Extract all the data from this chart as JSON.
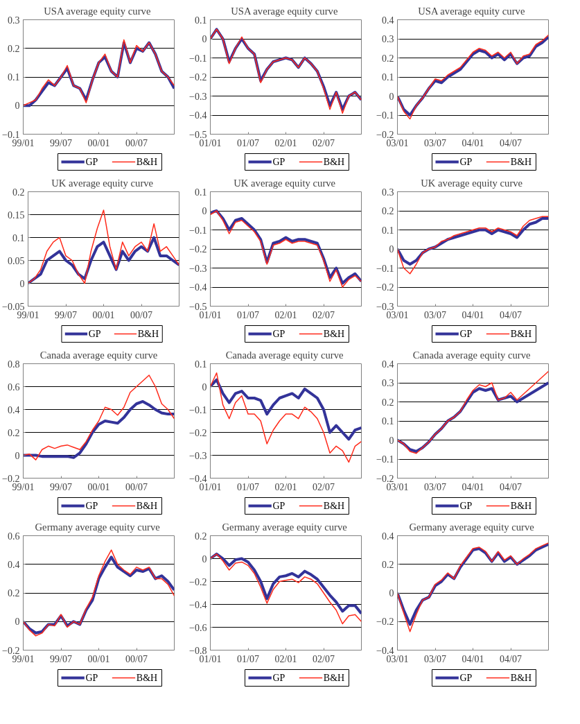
{
  "chart_data": [
    {
      "type": "line",
      "title": "USA  average equity curve",
      "categories": [
        "99/01",
        null,
        null,
        null,
        null,
        null,
        "99/07",
        null,
        null,
        null,
        null,
        null,
        "00/01",
        null,
        null,
        null,
        null,
        null,
        "00/07",
        null,
        null,
        null,
        null,
        null,
        null
      ],
      "ylim": [
        -0.1,
        0.3
      ],
      "yticks": [
        {
          "value": -0.1,
          "label": "−0.1"
        },
        0,
        0.1,
        0.2,
        0.3
      ],
      "grid": "y",
      "legend": "bottom",
      "series": [
        {
          "name": "GP",
          "color": "#333399",
          "values": [
            0,
            0.0,
            0.02,
            0.05,
            0.08,
            0.07,
            0.1,
            0.13,
            0.07,
            0.06,
            0.02,
            0.09,
            0.15,
            0.17,
            0.12,
            0.1,
            0.22,
            0.15,
            0.2,
            0.19,
            0.22,
            0.18,
            0.12,
            0.1,
            0.06
          ]
        },
        {
          "name": "B&H",
          "color": "#ff2a1a",
          "values": [
            0,
            0.01,
            0.02,
            0.06,
            0.09,
            0.07,
            0.1,
            0.14,
            0.07,
            0.06,
            0.01,
            0.09,
            0.15,
            0.18,
            0.12,
            0.1,
            0.23,
            0.15,
            0.21,
            0.19,
            0.22,
            0.18,
            0.12,
            0.1,
            0.07
          ]
        }
      ]
    },
    {
      "type": "line",
      "title": "USA  average equity curve",
      "categories": [
        "01/01",
        null,
        null,
        null,
        null,
        null,
        "01/07",
        null,
        null,
        null,
        null,
        null,
        "02/01",
        null,
        null,
        null,
        null,
        null,
        "02/07",
        null,
        null,
        null,
        null,
        null,
        null
      ],
      "ylim": [
        -0.5,
        0.1
      ],
      "yticks": [
        {
          "value": -0.5,
          "label": "−0.5"
        },
        {
          "value": -0.4,
          "label": "−0.4"
        },
        {
          "value": -0.3,
          "label": "−0.3"
        },
        {
          "value": -0.2,
          "label": "−0.2"
        },
        {
          "value": -0.1,
          "label": "−0.1"
        },
        0,
        0.1
      ],
      "grid": "y",
      "legend": "bottom",
      "series": [
        {
          "name": "GP",
          "color": "#333399",
          "values": [
            0,
            0.05,
            0.0,
            -0.12,
            -0.05,
            0.0,
            -0.05,
            -0.08,
            -0.22,
            -0.16,
            -0.12,
            -0.11,
            -0.1,
            -0.11,
            -0.15,
            -0.1,
            -0.13,
            -0.17,
            -0.25,
            -0.35,
            -0.28,
            -0.37,
            -0.3,
            -0.28,
            -0.32
          ]
        },
        {
          "name": "B&H",
          "color": "#ff2a1a",
          "values": [
            0,
            0.05,
            0.0,
            -0.13,
            -0.05,
            0.01,
            -0.05,
            -0.08,
            -0.23,
            -0.16,
            -0.12,
            -0.11,
            -0.1,
            -0.11,
            -0.15,
            -0.1,
            -0.13,
            -0.17,
            -0.26,
            -0.37,
            -0.28,
            -0.39,
            -0.3,
            -0.28,
            -0.32
          ]
        }
      ]
    },
    {
      "type": "line",
      "title": "USA  average equity curve",
      "categories": [
        "03/01",
        null,
        null,
        null,
        null,
        null,
        "03/07",
        null,
        null,
        null,
        null,
        null,
        "04/01",
        null,
        null,
        null,
        null,
        null,
        "04/07",
        null,
        null,
        null,
        null,
        null,
        null
      ],
      "ylim": [
        -0.2,
        0.4
      ],
      "yticks": [
        {
          "value": -0.2,
          "label": "−0.2"
        },
        {
          "value": -0.1,
          "label": "−0.1"
        },
        0,
        0.1,
        0.2,
        0.3,
        0.4
      ],
      "grid": "y",
      "legend": "bottom",
      "series": [
        {
          "name": "GP",
          "color": "#333399",
          "values": [
            0,
            -0.07,
            -0.1,
            -0.05,
            -0.01,
            0.04,
            0.08,
            0.07,
            0.1,
            0.12,
            0.14,
            0.18,
            0.22,
            0.24,
            0.23,
            0.2,
            0.22,
            0.19,
            0.22,
            0.17,
            0.2,
            0.21,
            0.26,
            0.28,
            0.31
          ]
        },
        {
          "name": "B&H",
          "color": "#ff2a1a",
          "values": [
            0,
            -0.08,
            -0.12,
            -0.05,
            -0.01,
            0.04,
            0.09,
            0.08,
            0.11,
            0.13,
            0.15,
            0.19,
            0.23,
            0.25,
            0.24,
            0.21,
            0.23,
            0.2,
            0.23,
            0.17,
            0.21,
            0.22,
            0.27,
            0.29,
            0.32
          ]
        }
      ]
    },
    {
      "type": "line",
      "title": "UK  average equity curve",
      "categories": [
        "99/01",
        null,
        null,
        null,
        null,
        null,
        "99/07",
        null,
        null,
        null,
        null,
        null,
        "00/01",
        null,
        null,
        null,
        null,
        null,
        "00/07",
        null,
        null,
        null,
        null,
        null,
        null
      ],
      "ylim": [
        -0.05,
        0.2
      ],
      "yticks": [
        {
          "value": -0.05,
          "label": "−0.05"
        },
        0,
        0.05,
        0.1,
        0.15,
        0.2
      ],
      "grid": "y",
      "legend": "bottom",
      "series": [
        {
          "name": "GP",
          "color": "#333399",
          "values": [
            0,
            0.01,
            0.02,
            0.05,
            0.06,
            0.07,
            0.05,
            0.04,
            0.02,
            0.01,
            0.05,
            0.08,
            0.09,
            0.06,
            0.03,
            0.07,
            0.05,
            0.07,
            0.08,
            0.07,
            0.1,
            0.06,
            0.06,
            0.05,
            0.04
          ]
        },
        {
          "name": "B&H",
          "color": "#ff2a1a",
          "values": [
            0,
            0.01,
            0.03,
            0.07,
            0.09,
            0.1,
            0.06,
            0.05,
            0.02,
            0.0,
            0.07,
            0.12,
            0.16,
            0.08,
            0.03,
            0.09,
            0.06,
            0.08,
            0.09,
            0.07,
            0.13,
            0.07,
            0.08,
            0.06,
            0.04
          ]
        }
      ]
    },
    {
      "type": "line",
      "title": "UK  average equity curve",
      "categories": [
        "01/01",
        null,
        null,
        null,
        null,
        null,
        "01/07",
        null,
        null,
        null,
        null,
        null,
        "02/01",
        null,
        null,
        null,
        null,
        null,
        "02/07",
        null,
        null,
        null,
        null,
        null,
        null
      ],
      "ylim": [
        -0.5,
        0.1
      ],
      "yticks": [
        {
          "value": -0.5,
          "label": "−0.5"
        },
        {
          "value": -0.4,
          "label": "−0.4"
        },
        {
          "value": -0.3,
          "label": "−0.3"
        },
        {
          "value": -0.2,
          "label": "−0.2"
        },
        {
          "value": -0.1,
          "label": "−0.1"
        },
        0,
        0.1
      ],
      "grid": "y",
      "legend": "bottom",
      "series": [
        {
          "name": "GP",
          "color": "#333399",
          "values": [
            -0.01,
            0.0,
            -0.04,
            -0.1,
            -0.05,
            -0.04,
            -0.07,
            -0.1,
            -0.15,
            -0.27,
            -0.17,
            -0.16,
            -0.14,
            -0.16,
            -0.15,
            -0.15,
            -0.16,
            -0.17,
            -0.25,
            -0.35,
            -0.3,
            -0.38,
            -0.35,
            -0.33,
            -0.37
          ]
        },
        {
          "name": "B&H",
          "color": "#ff2a1a",
          "values": [
            -0.02,
            0.0,
            -0.05,
            -0.12,
            -0.06,
            -0.05,
            -0.08,
            -0.11,
            -0.16,
            -0.28,
            -0.18,
            -0.17,
            -0.15,
            -0.17,
            -0.16,
            -0.16,
            -0.17,
            -0.18,
            -0.26,
            -0.37,
            -0.31,
            -0.4,
            -0.36,
            -0.34,
            -0.37
          ]
        }
      ]
    },
    {
      "type": "line",
      "title": "UK  average equity curve",
      "categories": [
        "03/01",
        null,
        null,
        null,
        null,
        null,
        "03/07",
        null,
        null,
        null,
        null,
        null,
        "04/01",
        null,
        null,
        null,
        null,
        null,
        "04/07",
        null,
        null,
        null,
        null,
        null,
        null
      ],
      "ylim": [
        -0.3,
        0.3
      ],
      "yticks": [
        {
          "value": -0.3,
          "label": "−0.3"
        },
        {
          "value": -0.2,
          "label": "−0.2"
        },
        {
          "value": -0.1,
          "label": "−0.1"
        },
        0,
        0.1,
        0.2,
        0.3
      ],
      "grid": "y",
      "legend": "bottom",
      "series": [
        {
          "name": "GP",
          "color": "#333399",
          "values": [
            0,
            -0.06,
            -0.08,
            -0.06,
            -0.02,
            0.0,
            0.01,
            0.03,
            0.05,
            0.06,
            0.07,
            0.08,
            0.09,
            0.1,
            0.1,
            0.08,
            0.1,
            0.09,
            0.08,
            0.06,
            0.1,
            0.13,
            0.14,
            0.16,
            0.16
          ]
        },
        {
          "name": "B&H",
          "color": "#ff2a1a",
          "values": [
            0,
            -0.1,
            -0.13,
            -0.08,
            -0.02,
            0.0,
            0.01,
            0.04,
            0.05,
            0.07,
            0.08,
            0.09,
            0.1,
            0.11,
            0.11,
            0.09,
            0.11,
            0.1,
            0.09,
            0.07,
            0.12,
            0.15,
            0.16,
            0.17,
            0.17
          ]
        }
      ]
    },
    {
      "type": "line",
      "title": "Canada average equity curve",
      "categories": [
        "99/01",
        null,
        null,
        null,
        null,
        null,
        "99/07",
        null,
        null,
        null,
        null,
        null,
        "00/01",
        null,
        null,
        null,
        null,
        null,
        "00/07",
        null,
        null,
        null,
        null,
        null,
        null
      ],
      "ylim": [
        -0.2,
        0.8
      ],
      "yticks": [
        {
          "value": -0.2,
          "label": "−0.2"
        },
        0,
        0.2,
        0.4,
        0.6,
        0.8
      ],
      "grid": "y",
      "legend": "bottom",
      "series": [
        {
          "name": "GP",
          "color": "#333399",
          "values": [
            0,
            0,
            0,
            -0.01,
            -0.01,
            -0.01,
            -0.01,
            -0.01,
            -0.02,
            0.02,
            0.1,
            0.2,
            0.27,
            0.3,
            0.29,
            0.28,
            0.33,
            0.4,
            0.45,
            0.47,
            0.44,
            0.4,
            0.37,
            0.36,
            0.36
          ]
        },
        {
          "name": "B&H",
          "color": "#ff2a1a",
          "values": [
            0,
            0.01,
            -0.04,
            0.05,
            0.08,
            0.06,
            0.08,
            0.09,
            0.07,
            0.05,
            0.12,
            0.22,
            0.3,
            0.42,
            0.4,
            0.35,
            0.42,
            0.55,
            0.6,
            0.65,
            0.7,
            0.6,
            0.45,
            0.4,
            0.32
          ]
        }
      ]
    },
    {
      "type": "line",
      "title": "Canada  average equity curve",
      "categories": [
        "01/01",
        null,
        null,
        null,
        null,
        null,
        "01/07",
        null,
        null,
        null,
        null,
        null,
        "02/01",
        null,
        null,
        null,
        null,
        null,
        "02/07",
        null,
        null,
        null,
        null,
        null,
        null
      ],
      "ylim": [
        -0.4,
        0.1
      ],
      "yticks": [
        {
          "value": -0.4,
          "label": "−0.4"
        },
        {
          "value": -0.3,
          "label": "−0.3"
        },
        {
          "value": -0.2,
          "label": "−0.2"
        },
        {
          "value": -0.1,
          "label": "−0.1"
        },
        0,
        0.1
      ],
      "grid": "y",
      "legend": "bottom",
      "series": [
        {
          "name": "GP",
          "color": "#333399",
          "values": [
            0,
            0.03,
            -0.03,
            -0.07,
            -0.03,
            -0.02,
            -0.05,
            -0.05,
            -0.06,
            -0.12,
            -0.08,
            -0.05,
            -0.04,
            -0.03,
            -0.05,
            -0.01,
            -0.03,
            -0.05,
            -0.1,
            -0.2,
            -0.17,
            -0.2,
            -0.23,
            -0.19,
            -0.18
          ]
        },
        {
          "name": "B&H",
          "color": "#ff2a1a",
          "values": [
            0,
            0.06,
            -0.08,
            -0.14,
            -0.07,
            -0.04,
            -0.12,
            -0.12,
            -0.15,
            -0.25,
            -0.19,
            -0.15,
            -0.12,
            -0.12,
            -0.14,
            -0.09,
            -0.11,
            -0.14,
            -0.2,
            -0.29,
            -0.26,
            -0.28,
            -0.33,
            -0.26,
            -0.24
          ]
        }
      ]
    },
    {
      "type": "line",
      "title": "Canada  average equity curve",
      "categories": [
        "03/01",
        null,
        null,
        null,
        null,
        null,
        "03/07",
        null,
        null,
        null,
        null,
        null,
        "04/01",
        null,
        null,
        null,
        null,
        null,
        "04/07",
        null,
        null,
        null,
        null,
        null,
        null
      ],
      "ylim": [
        -0.2,
        0.4
      ],
      "yticks": [
        {
          "value": -0.2,
          "label": "−0.2"
        },
        {
          "value": -0.1,
          "label": "−0.1"
        },
        0,
        0.1,
        0.2,
        0.3,
        0.4
      ],
      "grid": "y",
      "legend": "bottom",
      "series": [
        {
          "name": "GP",
          "color": "#333399",
          "values": [
            0,
            -0.02,
            -0.05,
            -0.06,
            -0.04,
            -0.01,
            0.03,
            0.06,
            0.1,
            0.12,
            0.15,
            0.2,
            0.25,
            0.27,
            0.26,
            0.27,
            0.21,
            0.22,
            0.23,
            0.2,
            0.22,
            0.24,
            0.26,
            0.28,
            0.3
          ]
        },
        {
          "name": "B&H",
          "color": "#ff2a1a",
          "values": [
            0,
            -0.02,
            -0.06,
            -0.07,
            -0.04,
            -0.01,
            0.03,
            0.06,
            0.1,
            0.12,
            0.15,
            0.21,
            0.26,
            0.29,
            0.28,
            0.3,
            0.21,
            0.22,
            0.25,
            0.21,
            0.24,
            0.27,
            0.3,
            0.33,
            0.36
          ]
        }
      ]
    },
    {
      "type": "line",
      "title": "Germany  average equity curve",
      "categories": [
        "99/01",
        null,
        null,
        null,
        null,
        null,
        "99/07",
        null,
        null,
        null,
        null,
        null,
        "00/01",
        null,
        null,
        null,
        null,
        null,
        "00/07",
        null,
        null,
        null,
        null,
        null,
        null
      ],
      "ylim": [
        -0.2,
        0.6
      ],
      "yticks": [
        {
          "value": -0.2,
          "label": "−0.2"
        },
        0,
        0.2,
        0.4,
        0.6
      ],
      "grid": "y",
      "legend": "bottom",
      "series": [
        {
          "name": "GP",
          "color": "#333399",
          "values": [
            0,
            -0.05,
            -0.08,
            -0.07,
            -0.02,
            -0.02,
            0.04,
            -0.03,
            0.0,
            -0.02,
            0.08,
            0.15,
            0.3,
            0.38,
            0.45,
            0.38,
            0.35,
            0.32,
            0.36,
            0.35,
            0.37,
            0.3,
            0.32,
            0.28,
            0.22
          ]
        },
        {
          "name": "B&H",
          "color": "#ff2a1a",
          "values": [
            0,
            -0.06,
            -0.1,
            -0.08,
            -0.02,
            -0.03,
            0.05,
            -0.04,
            0.0,
            -0.02,
            0.09,
            0.17,
            0.32,
            0.42,
            0.5,
            0.4,
            0.36,
            0.33,
            0.38,
            0.36,
            0.38,
            0.3,
            0.3,
            0.26,
            0.18
          ]
        }
      ]
    },
    {
      "type": "line",
      "title": "Germany  average equity curve",
      "categories": [
        "01/01",
        null,
        null,
        null,
        null,
        null,
        "01/07",
        null,
        null,
        null,
        null,
        null,
        "02/01",
        null,
        null,
        null,
        null,
        null,
        "02/07",
        null,
        null,
        null,
        null,
        null,
        null
      ],
      "ylim": [
        -0.8,
        0.2
      ],
      "yticks": [
        {
          "value": -0.8,
          "label": "−0.8"
        },
        {
          "value": -0.6,
          "label": "−0.6"
        },
        {
          "value": -0.4,
          "label": "−0.4"
        },
        {
          "value": -0.2,
          "label": "−0.2"
        },
        0,
        0.2
      ],
      "grid": "y",
      "legend": "bottom",
      "series": [
        {
          "name": "GP",
          "color": "#333399",
          "values": [
            0,
            0.04,
            0.0,
            -0.06,
            -0.01,
            0.0,
            -0.03,
            -0.1,
            -0.2,
            -0.35,
            -0.22,
            -0.16,
            -0.15,
            -0.13,
            -0.16,
            -0.11,
            -0.14,
            -0.18,
            -0.25,
            -0.32,
            -0.38,
            -0.46,
            -0.41,
            -0.41,
            -0.48
          ]
        },
        {
          "name": "B&H",
          "color": "#ff2a1a",
          "values": [
            0,
            0.04,
            -0.02,
            -0.1,
            -0.04,
            -0.03,
            -0.06,
            -0.13,
            -0.25,
            -0.39,
            -0.27,
            -0.2,
            -0.19,
            -0.18,
            -0.21,
            -0.16,
            -0.18,
            -0.22,
            -0.3,
            -0.38,
            -0.45,
            -0.57,
            -0.5,
            -0.49,
            -0.55
          ]
        }
      ]
    },
    {
      "type": "line",
      "title": "Germany  average equity curve",
      "categories": [
        "03/01",
        null,
        null,
        null,
        null,
        null,
        "03/07",
        null,
        null,
        null,
        null,
        null,
        "04/01",
        null,
        null,
        null,
        null,
        null,
        "04/07",
        null,
        null,
        null,
        null,
        null,
        null
      ],
      "ylim": [
        -0.4,
        0.4
      ],
      "yticks": [
        {
          "value": -0.4,
          "label": "−0.4"
        },
        {
          "value": -0.2,
          "label": "−0.2"
        },
        0,
        0.2,
        0.4
      ],
      "grid": "y",
      "legend": "bottom",
      "series": [
        {
          "name": "GP",
          "color": "#333399",
          "values": [
            0,
            -0.12,
            -0.22,
            -0.12,
            -0.05,
            -0.03,
            0.05,
            0.08,
            0.13,
            0.1,
            0.18,
            0.24,
            0.3,
            0.31,
            0.28,
            0.22,
            0.28,
            0.22,
            0.25,
            0.2,
            0.23,
            0.26,
            0.3,
            0.32,
            0.34
          ]
        },
        {
          "name": "B&H",
          "color": "#ff2a1a",
          "values": [
            0,
            -0.14,
            -0.27,
            -0.15,
            -0.05,
            -0.03,
            0.06,
            0.09,
            0.14,
            0.1,
            0.19,
            0.25,
            0.31,
            0.32,
            0.29,
            0.22,
            0.29,
            0.23,
            0.26,
            0.2,
            0.24,
            0.27,
            0.31,
            0.33,
            0.35
          ]
        }
      ]
    }
  ]
}
